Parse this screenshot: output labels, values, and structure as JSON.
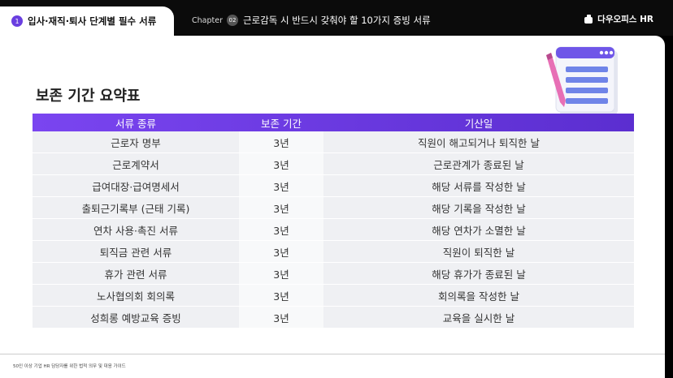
{
  "header": {
    "section_number": "1",
    "section_title": "입사·재직·퇴사 단계별 필수 서류",
    "chapter_label": "Chapter",
    "chapter_number": "02",
    "chapter_title": "근로감독 시 반드시 갖춰야 할 10가지 증빙 서류",
    "logo": "다우오피스 HR"
  },
  "title": "보존 기간 요약표",
  "table": {
    "columns": [
      "서류 종류",
      "보존 기간",
      "기산일"
    ],
    "rows": [
      [
        "근로자 명부",
        "3년",
        "직원이 해고되거나 퇴직한 날"
      ],
      [
        "근로계약서",
        "3년",
        "근로관계가 종료된 날"
      ],
      [
        "급여대장·급여명세서",
        "3년",
        "해당 서류를 작성한 날"
      ],
      [
        "출퇴근기록부 (근태 기록)",
        "3년",
        "해당 기록을 작성한 날"
      ],
      [
        "연차 사용·촉진 서류",
        "3년",
        "해당 연차가 소멸한 날"
      ],
      [
        "퇴직금 관련 서류",
        "3년",
        "직원이 퇴직한 날"
      ],
      [
        "휴가 관련 서류",
        "3년",
        "해당 휴가가 종료된 날"
      ],
      [
        "노사협의회 회의록",
        "3년",
        "회의록을 작성한 날"
      ],
      [
        "성희롱 예방교육 증빙",
        "3년",
        "교육을 실시한 날"
      ]
    ]
  },
  "footer": "50인 이상 기업 HR 담당자를 위한 법적 의무 및 대응 가이드"
}
